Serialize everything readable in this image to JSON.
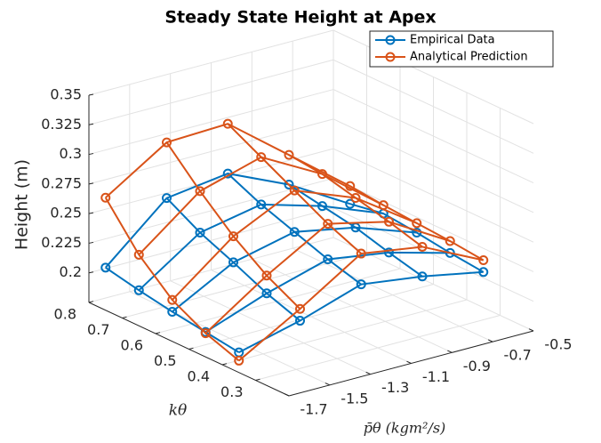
{
  "chart_data": {
    "type": "line3d",
    "title": "Steady State Height at Apex",
    "xlabel": "p̄θ (kgm²/s)",
    "ylabel": "kθ",
    "zlabel": "Height (m)",
    "x": [
      -1.7,
      -1.4,
      -1.1,
      -0.8,
      -0.5
    ],
    "y": [
      0.75,
      0.65,
      0.55,
      0.45,
      0.35
    ],
    "xlim": [
      -1.7,
      -0.5
    ],
    "xticks": [
      -1.7,
      -1.5,
      -1.3,
      -1.1,
      -0.9,
      -0.7,
      -0.5
    ],
    "ylim": [
      0.2,
      0.8
    ],
    "yticks": [
      0.3,
      0.4,
      0.5,
      0.6,
      0.7,
      0.8
    ],
    "zlim": [
      0.175,
      0.35
    ],
    "zticks": [
      0.2,
      0.225,
      0.25,
      0.275,
      0.3,
      0.325,
      0.35
    ],
    "grid": true,
    "legend": "top-right",
    "series": [
      {
        "name": "Empirical Data",
        "color": "#0072bd",
        "values": [
          [
            0.211,
            0.256,
            0.263,
            0.24,
            0.21
          ],
          [
            0.205,
            0.24,
            0.25,
            0.235,
            0.215
          ],
          [
            0.2,
            0.228,
            0.24,
            0.23,
            0.212
          ],
          [
            0.196,
            0.215,
            0.23,
            0.222,
            0.208
          ],
          [
            0.192,
            0.205,
            0.222,
            0.215,
            0.205
          ]
        ]
      },
      {
        "name": "Analytical Prediction",
        "color": "#d95319",
        "values": [
          [
            0.27,
            0.303,
            0.305,
            0.265,
            0.225
          ],
          [
            0.235,
            0.275,
            0.29,
            0.262,
            0.222
          ],
          [
            0.21,
            0.25,
            0.275,
            0.255,
            0.22
          ],
          [
            0.195,
            0.23,
            0.26,
            0.248,
            0.218
          ],
          [
            0.185,
            0.215,
            0.248,
            0.24,
            0.215
          ]
        ]
      }
    ]
  }
}
